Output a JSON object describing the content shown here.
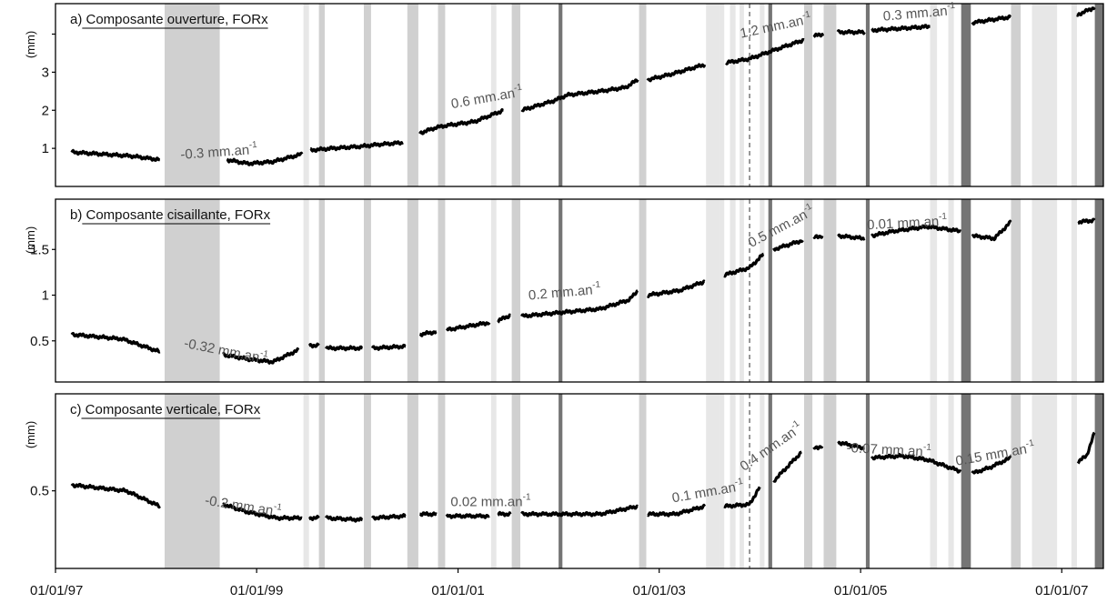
{
  "chart_data": {
    "type": "line",
    "x_axis": {
      "range": [
        "1997-01-01",
        "2007-06-01"
      ],
      "ticks": [
        "1997-01-01",
        "1999-01-01",
        "2001-01-01",
        "2003-01-01",
        "2005-01-01",
        "2007-01-01"
      ],
      "tick_labels": [
        "01/01/97",
        "01/01/99",
        "01/01/01",
        "01/01/03",
        "01/01/05",
        "01/01/07"
      ]
    },
    "shaded_bands": [
      {
        "start": "1998-02-01",
        "end": "1998-08-20",
        "tone": "medium"
      },
      {
        "start": "1999-06-20",
        "end": "1999-07-10",
        "tone": "light"
      },
      {
        "start": "1999-08-15",
        "end": "1999-09-05",
        "tone": "medium"
      },
      {
        "start": "2000-01-25",
        "end": "2000-02-20",
        "tone": "medium"
      },
      {
        "start": "2000-07-01",
        "end": "2000-08-10",
        "tone": "medium"
      },
      {
        "start": "2000-10-20",
        "end": "2000-11-15",
        "tone": "medium"
      },
      {
        "start": "2001-05-01",
        "end": "2001-05-20",
        "tone": "light"
      },
      {
        "start": "2001-07-15",
        "end": "2001-08-15",
        "tone": "medium"
      },
      {
        "start": "2002-01-01",
        "end": "2002-01-15",
        "tone": "dark"
      },
      {
        "start": "2002-10-20",
        "end": "2002-11-15",
        "tone": "medium"
      },
      {
        "start": "2003-06-20",
        "end": "2003-08-05",
        "tone": "light"
      },
      {
        "start": "2003-08-05",
        "end": "2003-08-25",
        "tone": "light"
      },
      {
        "start": "2003-09-15",
        "end": "2003-10-05",
        "tone": "light"
      },
      {
        "start": "2003-10-20",
        "end": "2003-11-05",
        "tone": "light"
      },
      {
        "start": "2004-01-01",
        "end": "2004-01-18",
        "tone": "light"
      },
      {
        "start": "2004-02-01",
        "end": "2004-02-15",
        "tone": "dark"
      },
      {
        "start": "2004-06-10",
        "end": "2004-07-10",
        "tone": "medium"
      },
      {
        "start": "2004-08-20",
        "end": "2004-10-05",
        "tone": "medium"
      },
      {
        "start": "2005-01-20",
        "end": "2005-02-03",
        "tone": "dark"
      },
      {
        "start": "2005-09-10",
        "end": "2005-10-05",
        "tone": "light"
      },
      {
        "start": "2005-11-15",
        "end": "2005-12-05",
        "tone": "light"
      },
      {
        "start": "2006-01-01",
        "end": "2006-02-05",
        "tone": "dark"
      },
      {
        "start": "2006-07-01",
        "end": "2006-08-05",
        "tone": "medium"
      },
      {
        "start": "2006-09-15",
        "end": "2006-12-15",
        "tone": "light"
      },
      {
        "start": "2007-02-05",
        "end": "2007-02-25",
        "tone": "light"
      },
      {
        "start": "2007-05-01",
        "end": "2007-06-01",
        "tone": "dark"
      }
    ],
    "event_line": {
      "date": "2003-11-25",
      "style": "dashed"
    },
    "panels": [
      {
        "title": "a) Composante ouverture, FORx",
        "ylabel": "(mm)",
        "ylim": [
          0,
          4.8
        ],
        "yticks": [
          1,
          2,
          3,
          4
        ],
        "ytick_labels": [
          "1",
          "2",
          "3",
          ""
        ],
        "series": [
          {
            "x": [
              "1997-03-01",
              "1997-10-01",
              "1998-01-15"
            ],
            "y": [
              0.9,
              0.8,
              0.7
            ]
          },
          {
            "x": [
              "1998-09-15",
              "1998-12-01",
              "1999-03-01",
              "1999-06-15"
            ],
            "y": [
              0.7,
              0.6,
              0.65,
              0.85
            ]
          },
          {
            "x": [
              "1999-07-15",
              "1999-10-01",
              "2000-01-15",
              "2000-03-15",
              "2000-06-15"
            ],
            "y": [
              0.95,
              1.0,
              1.05,
              1.1,
              1.15
            ]
          },
          {
            "x": [
              "2000-08-15",
              "2000-10-15",
              "2000-11-20",
              "2001-03-01",
              "2001-06-15"
            ],
            "y": [
              1.4,
              1.55,
              1.6,
              1.7,
              2.0
            ]
          },
          {
            "x": [
              "2001-08-20",
              "2001-12-15",
              "2002-02-01",
              "2002-06-01",
              "2002-09-01",
              "2002-10-15"
            ],
            "y": [
              2.0,
              2.25,
              2.4,
              2.5,
              2.6,
              2.8
            ]
          },
          {
            "x": [
              "2002-11-20",
              "2003-02-15",
              "2003-06-15"
            ],
            "y": [
              2.8,
              2.95,
              3.2
            ]
          },
          {
            "x": [
              "2003-09-01",
              "2003-11-25",
              "2004-03-01",
              "2004-06-10"
            ],
            "y": [
              3.25,
              3.35,
              3.6,
              3.85
            ]
          },
          {
            "x": [
              "2004-07-15",
              "2004-08-20"
            ],
            "y": [
              3.95,
              4.0
            ]
          },
          {
            "x": [
              "2004-10-10",
              "2005-01-15"
            ],
            "y": [
              4.05,
              4.05
            ]
          },
          {
            "x": [
              "2005-02-10",
              "2005-06-01",
              "2005-09-10"
            ],
            "y": [
              4.1,
              4.15,
              4.2
            ]
          },
          {
            "x": [
              "2006-02-10",
              "2006-06-30"
            ],
            "y": [
              4.3,
              4.45
            ]
          },
          {
            "x": [
              "2007-02-25",
              "2007-04-30"
            ],
            "y": [
              4.5,
              4.7
            ]
          }
        ],
        "annotations": [
          {
            "text": "-0.3 mm.an",
            "sup": "-1",
            "x": "1998-04-01",
            "y": 0.72,
            "angle": -4
          },
          {
            "text": "0.6 mm.an",
            "sup": "-1",
            "x": "2000-12-10",
            "y": 2.05,
            "angle": -10
          },
          {
            "text": "1.2 mm.an",
            "sup": "-1",
            "x": "2003-10-25",
            "y": 3.9,
            "angle": -12
          },
          {
            "text": "0.3 mm.an",
            "sup": "-1",
            "x": "2005-03-25",
            "y": 4.35,
            "angle": -5
          }
        ]
      },
      {
        "title": "b) Composante cisaillante, FORx",
        "ylabel": "(mm)",
        "ylim": [
          0.05,
          2.05
        ],
        "yticks": [
          0.5,
          1,
          1.5
        ],
        "ytick_labels": [
          "0.5",
          "1",
          "1.5"
        ],
        "series": [
          {
            "x": [
              "1997-03-01",
              "1997-09-01",
              "1998-01-15"
            ],
            "y": [
              0.57,
              0.52,
              0.38
            ]
          },
          {
            "x": [
              "1998-09-01",
              "1998-12-01",
              "1999-03-01",
              "1999-06-01"
            ],
            "y": [
              0.35,
              0.3,
              0.27,
              0.4
            ]
          },
          {
            "x": [
              "1999-07-10",
              "1999-08-15"
            ],
            "y": [
              0.45,
              0.45
            ]
          },
          {
            "x": [
              "1999-09-10",
              "2000-01-20"
            ],
            "y": [
              0.42,
              0.42
            ]
          },
          {
            "x": [
              "2000-02-25",
              "2000-06-25"
            ],
            "y": [
              0.42,
              0.44
            ]
          },
          {
            "x": [
              "2000-08-15",
              "2000-10-15"
            ],
            "y": [
              0.57,
              0.6
            ]
          },
          {
            "x": [
              "2000-11-20",
              "2001-04-25"
            ],
            "y": [
              0.62,
              0.7
            ]
          },
          {
            "x": [
              "2001-05-25",
              "2001-07-10"
            ],
            "y": [
              0.72,
              0.78
            ]
          },
          {
            "x": [
              "2001-08-20",
              "2002-06-01",
              "2002-09-15",
              "2002-10-15"
            ],
            "y": [
              0.77,
              0.85,
              0.95,
              1.05
            ]
          },
          {
            "x": [
              "2002-11-20",
              "2003-03-15",
              "2003-06-15"
            ],
            "y": [
              1.0,
              1.05,
              1.15
            ]
          },
          {
            "x": [
              "2003-08-25",
              "2003-11-25",
              "2004-01-15"
            ],
            "y": [
              1.22,
              1.3,
              1.45
            ]
          },
          {
            "x": [
              "2004-02-20",
              "2004-06-05"
            ],
            "y": [
              1.5,
              1.6
            ]
          },
          {
            "x": [
              "2004-07-15",
              "2004-08-15"
            ],
            "y": [
              1.63,
              1.65
            ]
          },
          {
            "x": [
              "2004-10-10",
              "2005-01-15"
            ],
            "y": [
              1.65,
              1.62
            ]
          },
          {
            "x": [
              "2005-02-10",
              "2005-05-01",
              "2005-09-01",
              "2005-12-31"
            ],
            "y": [
              1.65,
              1.7,
              1.75,
              1.7
            ]
          },
          {
            "x": [
              "2006-02-10",
              "2006-05-01",
              "2006-06-30"
            ],
            "y": [
              1.65,
              1.62,
              1.8
            ]
          },
          {
            "x": [
              "2007-03-01",
              "2007-04-30"
            ],
            "y": [
              1.8,
              1.82
            ]
          }
        ],
        "annotations": [
          {
            "text": "-0.32 mm.an",
            "sup": "-1",
            "x": "1998-04-10",
            "y": 0.43,
            "angle": 11
          },
          {
            "text": "0.2 mm.an",
            "sup": "-1",
            "x": "2001-09-15",
            "y": 0.95,
            "angle": -5
          },
          {
            "text": "0.5 mm.an",
            "sup": "-1",
            "x": "2003-12-01",
            "y": 1.52,
            "angle": -28
          },
          {
            "text": "0.01 mm.an",
            "sup": "-1",
            "x": "2005-01-25",
            "y": 1.72,
            "angle": -3
          }
        ]
      },
      {
        "title": "c) Composante verticale, FORx",
        "ylabel": "(mm)",
        "ylim": [
          0.1,
          1.0
        ],
        "yticks": [
          0.5
        ],
        "ytick_labels": [
          "0.5"
        ],
        "series": [
          {
            "x": [
              "1997-03-01",
              "1997-09-15",
              "1998-01-15"
            ],
            "y": [
              0.53,
              0.5,
              0.42
            ]
          },
          {
            "x": [
              "1998-09-01",
              "1998-12-01",
              "1999-03-15",
              "1999-06-15"
            ],
            "y": [
              0.43,
              0.39,
              0.36,
              0.36
            ]
          },
          {
            "x": [
              "1999-07-10",
              "1999-08-15"
            ],
            "y": [
              0.36,
              0.36
            ]
          },
          {
            "x": [
              "1999-09-10",
              "2000-01-20"
            ],
            "y": [
              0.36,
              0.35
            ]
          },
          {
            "x": [
              "2000-02-25",
              "2000-06-25"
            ],
            "y": [
              0.36,
              0.37
            ]
          },
          {
            "x": [
              "2000-08-15",
              "2000-10-15"
            ],
            "y": [
              0.38,
              0.38
            ]
          },
          {
            "x": [
              "2000-11-20",
              "2001-04-25"
            ],
            "y": [
              0.37,
              0.37
            ]
          },
          {
            "x": [
              "2001-05-25",
              "2001-07-10"
            ],
            "y": [
              0.38,
              0.38
            ]
          },
          {
            "x": [
              "2001-08-20",
              "2002-06-01",
              "2002-10-15"
            ],
            "y": [
              0.38,
              0.38,
              0.42
            ]
          },
          {
            "x": [
              "2002-11-20",
              "2003-03-01",
              "2003-06-15"
            ],
            "y": [
              0.38,
              0.38,
              0.42
            ]
          },
          {
            "x": [
              "2003-08-25",
              "2003-11-25",
              "2004-01-01"
            ],
            "y": [
              0.42,
              0.43,
              0.52
            ]
          },
          {
            "x": [
              "2004-02-20",
              "2004-06-01"
            ],
            "y": [
              0.55,
              0.7
            ]
          },
          {
            "x": [
              "2004-07-15",
              "2004-08-15"
            ],
            "y": [
              0.72,
              0.73
            ]
          },
          {
            "x": [
              "2004-10-10",
              "2005-01-15"
            ],
            "y": [
              0.75,
              0.72
            ]
          },
          {
            "x": [
              "2005-02-10",
              "2005-06-01",
              "2005-09-01",
              "2005-12-31"
            ],
            "y": [
              0.67,
              0.68,
              0.66,
              0.6
            ]
          },
          {
            "x": [
              "2006-02-10",
              "2006-04-15",
              "2006-06-30"
            ],
            "y": [
              0.59,
              0.62,
              0.67
            ]
          },
          {
            "x": [
              "2007-03-01",
              "2007-04-01",
              "2007-04-30"
            ],
            "y": [
              0.65,
              0.68,
              0.8
            ]
          }
        ],
        "annotations": [
          {
            "text": "-0.2 mm.an",
            "sup": "-1",
            "x": "1998-06-25",
            "y": 0.43,
            "angle": 9
          },
          {
            "text": "0.02 mm.an",
            "sup": "-1",
            "x": "2000-12-05",
            "y": 0.42,
            "angle": 0
          },
          {
            "text": "0.1 mm.an",
            "sup": "-1",
            "x": "2003-02-20",
            "y": 0.44,
            "angle": -10
          },
          {
            "text": "0.4 mm.an",
            "sup": "-1",
            "x": "2003-11-05",
            "y": 0.6,
            "angle": -35
          },
          {
            "text": "-0.07 mm.an",
            "sup": "-1",
            "x": "2004-11-10",
            "y": 0.7,
            "angle": 3
          },
          {
            "text": "0.15 mm.an",
            "sup": "-1",
            "x": "2005-12-15",
            "y": 0.63,
            "angle": -10
          }
        ]
      }
    ]
  }
}
